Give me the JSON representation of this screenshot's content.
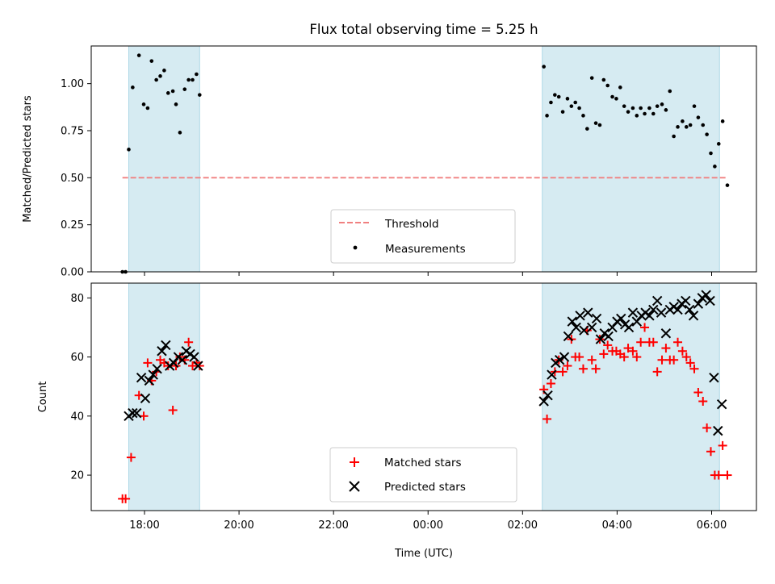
{
  "chart_data": [
    {
      "type": "scatter",
      "title": "Flux total observing time = 5.25 h",
      "ylabel": "Matched/Predicted stars",
      "xlabel": "",
      "ylim": [
        0,
        1.2
      ],
      "yticks": [
        "0.00",
        "0.25",
        "0.50",
        "0.75",
        "1.00"
      ],
      "threshold": 0.5,
      "shaded_intervals": [
        [
          "17:40",
          "19:10"
        ],
        [
          "02:25",
          "06:10"
        ]
      ],
      "shade_color": "#add8e6",
      "legend": {
        "position": "lower-center",
        "entries": [
          "Threshold",
          "Measurements"
        ]
      },
      "series": [
        {
          "name": "Threshold",
          "style": "dashed-line",
          "color": "#f08080",
          "x": [
            "17:32",
            "06:20"
          ],
          "y": [
            0.5,
            0.5
          ]
        },
        {
          "name": "Measurements",
          "style": "dot",
          "color": "#000000",
          "x": [
            "17:32",
            "17:36",
            "17:40",
            "17:45",
            "17:53",
            "17:59",
            "18:04",
            "18:09",
            "18:15",
            "18:20",
            "18:25",
            "18:30",
            "18:36",
            "18:40",
            "18:45",
            "18:51",
            "18:56",
            "19:01",
            "19:06",
            "19:10",
            "02:27",
            "02:31",
            "02:36",
            "02:41",
            "02:46",
            "02:51",
            "02:57",
            "03:02",
            "03:07",
            "03:12",
            "03:17",
            "03:22",
            "03:28",
            "03:33",
            "03:38",
            "03:43",
            "03:48",
            "03:54",
            "03:59",
            "04:04",
            "04:09",
            "04:14",
            "04:20",
            "04:25",
            "04:30",
            "04:35",
            "04:41",
            "04:46",
            "04:51",
            "04:57",
            "05:02",
            "05:07",
            "05:12",
            "05:17",
            "05:23",
            "05:28",
            "05:33",
            "05:38",
            "05:43",
            "05:49",
            "05:54",
            "05:59",
            "06:04",
            "06:09",
            "06:14",
            "06:20"
          ],
          "y": [
            0.0,
            0.0,
            0.65,
            0.98,
            1.15,
            0.89,
            0.87,
            1.12,
            1.02,
            1.04,
            1.07,
            0.95,
            0.96,
            0.89,
            0.74,
            0.97,
            1.02,
            1.02,
            1.05,
            0.94,
            1.09,
            0.83,
            0.9,
            0.94,
            0.93,
            0.85,
            0.92,
            0.88,
            0.9,
            0.87,
            0.83,
            0.76,
            1.03,
            0.79,
            0.78,
            1.02,
            0.99,
            0.93,
            0.92,
            0.98,
            0.88,
            0.85,
            0.87,
            0.83,
            0.87,
            0.84,
            0.87,
            0.84,
            0.88,
            0.89,
            0.86,
            0.96,
            0.72,
            0.77,
            0.8,
            0.77,
            0.78,
            0.88,
            0.82,
            0.78,
            0.73,
            0.63,
            0.56,
            0.68,
            0.8,
            0.46
          ]
        }
      ]
    },
    {
      "type": "scatter",
      "title": "",
      "ylabel": "Count",
      "xlabel": "Time (UTC)",
      "ylim": [
        8,
        85
      ],
      "yticks": [
        "20",
        "40",
        "60",
        "80"
      ],
      "xticks": [
        "18:00",
        "20:00",
        "22:00",
        "00:00",
        "02:00",
        "04:00",
        "06:00"
      ],
      "shaded_intervals": [
        [
          "17:40",
          "19:10"
        ],
        [
          "02:25",
          "06:10"
        ]
      ],
      "legend": {
        "position": "lower-center",
        "entries": [
          "Matched stars",
          "Predicted stars"
        ]
      },
      "series": [
        {
          "name": "Matched stars",
          "marker": "plus",
          "color": "#ff0000",
          "x": [
            "17:32",
            "17:36",
            "17:43",
            "17:53",
            "17:59",
            "18:04",
            "18:09",
            "18:15",
            "18:20",
            "18:25",
            "18:30",
            "18:36",
            "18:40",
            "18:45",
            "18:51",
            "18:56",
            "19:01",
            "19:06",
            "19:10",
            "02:27",
            "02:31",
            "02:36",
            "02:41",
            "02:46",
            "02:51",
            "02:57",
            "03:02",
            "03:07",
            "03:12",
            "03:17",
            "03:22",
            "03:28",
            "03:33",
            "03:38",
            "03:43",
            "03:48",
            "03:54",
            "03:59",
            "04:04",
            "04:09",
            "04:14",
            "04:20",
            "04:25",
            "04:30",
            "04:35",
            "04:41",
            "04:46",
            "04:51",
            "04:57",
            "05:02",
            "05:07",
            "05:12",
            "05:17",
            "05:23",
            "05:28",
            "05:33",
            "05:38",
            "05:43",
            "05:49",
            "05:54",
            "05:59",
            "06:04",
            "06:09",
            "06:14",
            "06:20"
          ],
          "y": [
            12,
            12,
            26,
            47,
            40,
            58,
            52,
            55,
            59,
            58,
            57,
            42,
            57,
            60,
            59,
            65,
            57,
            58,
            57,
            49,
            39,
            51,
            55,
            59,
            55,
            57,
            66,
            60,
            60,
            56,
            69,
            59,
            56,
            66,
            61,
            64,
            62,
            62,
            61,
            60,
            63,
            62,
            60,
            65,
            70,
            65,
            65,
            55,
            59,
            63,
            59,
            59,
            65,
            62,
            60,
            58,
            56,
            48,
            45,
            36,
            28,
            20,
            20,
            30,
            20
          ]
        },
        {
          "name": "Predicted stars",
          "marker": "x",
          "color": "#000000",
          "x": [
            "17:40",
            "17:45",
            "17:50",
            "17:56",
            "18:01",
            "18:06",
            "18:11",
            "18:16",
            "18:22",
            "18:27",
            "18:32",
            "18:37",
            "18:43",
            "18:48",
            "18:53",
            "18:58",
            "19:03",
            "19:08",
            "02:27",
            "02:32",
            "02:37",
            "02:42",
            "02:47",
            "02:53",
            "02:58",
            "03:03",
            "03:08",
            "03:13",
            "03:18",
            "03:23",
            "03:28",
            "03:34",
            "03:39",
            "03:44",
            "03:49",
            "03:54",
            "04:00",
            "04:05",
            "04:10",
            "04:15",
            "04:20",
            "04:25",
            "04:31",
            "04:36",
            "04:41",
            "04:46",
            "04:51",
            "04:56",
            "05:02",
            "05:07",
            "05:12",
            "05:17",
            "05:22",
            "05:27",
            "05:32",
            "05:37",
            "05:43",
            "05:48",
            "05:53",
            "05:58",
            "06:03",
            "06:08",
            "06:13"
          ],
          "y": [
            40,
            41,
            41,
            53,
            46,
            52,
            54,
            56,
            62,
            64,
            57,
            58,
            60,
            59,
            62,
            61,
            60,
            57,
            45,
            47,
            54,
            58,
            59,
            60,
            67,
            72,
            70,
            74,
            69,
            75,
            70,
            73,
            66,
            68,
            67,
            70,
            72,
            73,
            71,
            70,
            75,
            72,
            74,
            75,
            74,
            76,
            79,
            75,
            68,
            76,
            77,
            76,
            78,
            79,
            76,
            74,
            78,
            80,
            81,
            79,
            53,
            35,
            44
          ]
        }
      ]
    }
  ]
}
